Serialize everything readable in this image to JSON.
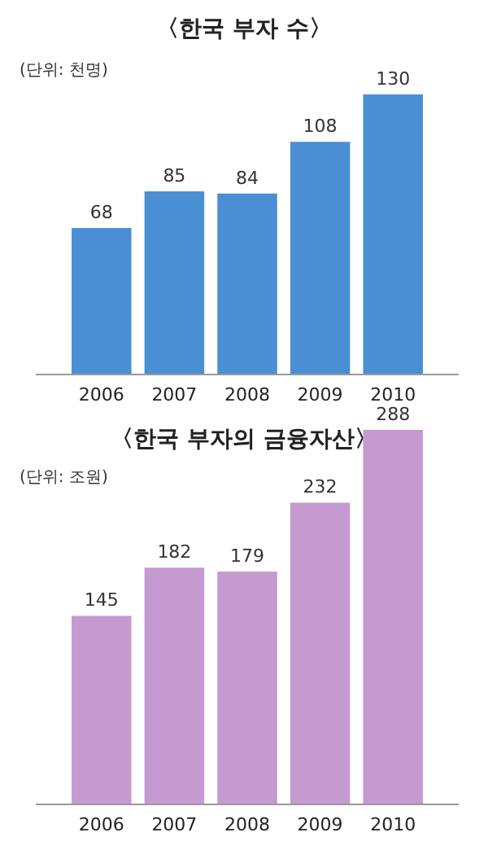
{
  "chart_data": [
    {
      "type": "bar",
      "title": "〈한국 부자 수〉",
      "annotations": [
        "(단위: 천명)"
      ],
      "categories": [
        "2006",
        "2007",
        "2008",
        "2009",
        "2010"
      ],
      "values": [
        68,
        85,
        84,
        108,
        130
      ],
      "color": "#4a8ed4",
      "data_labels": true
    },
    {
      "type": "bar",
      "title": "〈한국 부자의 금융자산〉",
      "annotations": [
        "(단위: 조원)"
      ],
      "categories": [
        "2006",
        "2007",
        "2008",
        "2009",
        "2010"
      ],
      "values": [
        145,
        182,
        179,
        232,
        288
      ],
      "color": "#c49ad0",
      "data_labels": true
    }
  ]
}
